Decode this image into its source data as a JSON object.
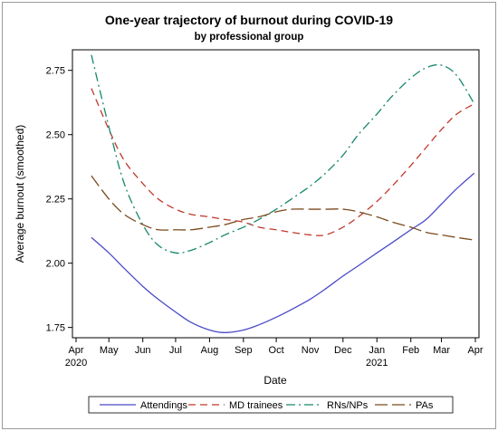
{
  "chart_data": {
    "type": "line",
    "title": "One-year trajectory of burnout during COVID-19",
    "subtitle": "by professional group",
    "xlabel": "Date",
    "ylabel": "Average burnout (smoothed)",
    "x_ticks": [
      {
        "date": "2020-04-01",
        "label": "Apr",
        "label2": "2020"
      },
      {
        "date": "2020-05-01",
        "label": "May",
        "label2": ""
      },
      {
        "date": "2020-06-01",
        "label": "Jun",
        "label2": ""
      },
      {
        "date": "2020-07-01",
        "label": "Jul",
        "label2": ""
      },
      {
        "date": "2020-08-01",
        "label": "Aug",
        "label2": ""
      },
      {
        "date": "2020-09-01",
        "label": "Sep",
        "label2": ""
      },
      {
        "date": "2020-10-01",
        "label": "Oct",
        "label2": ""
      },
      {
        "date": "2020-11-01",
        "label": "Nov",
        "label2": ""
      },
      {
        "date": "2020-12-01",
        "label": "Dec",
        "label2": ""
      },
      {
        "date": "2021-01-01",
        "label": "Jan",
        "label2": "2021"
      },
      {
        "date": "2021-02-01",
        "label": "Feb",
        "label2": ""
      },
      {
        "date": "2021-03-01",
        "label": "Mar",
        "label2": ""
      },
      {
        "date": "2021-04-01",
        "label": "Apr",
        "label2": ""
      }
    ],
    "xlim": [
      "2020-04-01",
      "2021-04-01"
    ],
    "y_ticks": [
      1.75,
      2.0,
      2.25,
      2.5,
      2.75
    ],
    "ylim": [
      1.71,
      2.83
    ],
    "grid": false,
    "legend_position": "bottom",
    "series": [
      {
        "name": "Attendings",
        "color": "#4b4bc8",
        "dash": "solid",
        "points": [
          [
            "2020-04-15",
            2.1
          ],
          [
            "2020-05-01",
            2.04
          ],
          [
            "2020-05-15",
            1.98
          ],
          [
            "2020-06-01",
            1.91
          ],
          [
            "2020-06-15",
            1.86
          ],
          [
            "2020-07-01",
            1.81
          ],
          [
            "2020-07-15",
            1.77
          ],
          [
            "2020-08-01",
            1.74
          ],
          [
            "2020-08-15",
            1.73
          ],
          [
            "2020-09-01",
            1.74
          ],
          [
            "2020-09-15",
            1.76
          ],
          [
            "2020-10-01",
            1.79
          ],
          [
            "2020-10-15",
            1.82
          ],
          [
            "2020-11-01",
            1.86
          ],
          [
            "2020-11-15",
            1.9
          ],
          [
            "2020-12-01",
            1.95
          ],
          [
            "2020-12-15",
            1.99
          ],
          [
            "2021-01-01",
            2.04
          ],
          [
            "2021-01-15",
            2.08
          ],
          [
            "2021-02-01",
            2.13
          ],
          [
            "2021-02-15",
            2.17
          ],
          [
            "2021-03-01",
            2.23
          ],
          [
            "2021-03-15",
            2.29
          ],
          [
            "2021-03-31",
            2.35
          ]
        ]
      },
      {
        "name": "MD trainees",
        "color": "#c0392b",
        "dash": "8,5",
        "points": [
          [
            "2020-04-15",
            2.68
          ],
          [
            "2020-05-01",
            2.52
          ],
          [
            "2020-05-15",
            2.4
          ],
          [
            "2020-06-01",
            2.31
          ],
          [
            "2020-06-15",
            2.25
          ],
          [
            "2020-07-01",
            2.21
          ],
          [
            "2020-07-15",
            2.19
          ],
          [
            "2020-08-01",
            2.18
          ],
          [
            "2020-08-15",
            2.17
          ],
          [
            "2020-09-01",
            2.16
          ],
          [
            "2020-09-15",
            2.14
          ],
          [
            "2020-10-01",
            2.13
          ],
          [
            "2020-10-15",
            2.12
          ],
          [
            "2020-11-01",
            2.11
          ],
          [
            "2020-11-15",
            2.11
          ],
          [
            "2020-12-01",
            2.14
          ],
          [
            "2020-12-15",
            2.18
          ],
          [
            "2021-01-01",
            2.24
          ],
          [
            "2021-01-15",
            2.3
          ],
          [
            "2021-02-01",
            2.38
          ],
          [
            "2021-02-15",
            2.45
          ],
          [
            "2021-03-01",
            2.52
          ],
          [
            "2021-03-15",
            2.58
          ],
          [
            "2021-03-31",
            2.62
          ]
        ]
      },
      {
        "name": "RNs/NPs",
        "color": "#17876e",
        "dash": "10,4,2,4",
        "points": [
          [
            "2020-04-15",
            2.81
          ],
          [
            "2020-05-01",
            2.53
          ],
          [
            "2020-05-15",
            2.31
          ],
          [
            "2020-06-01",
            2.15
          ],
          [
            "2020-06-15",
            2.07
          ],
          [
            "2020-07-01",
            2.04
          ],
          [
            "2020-07-15",
            2.05
          ],
          [
            "2020-08-01",
            2.08
          ],
          [
            "2020-08-15",
            2.11
          ],
          [
            "2020-09-01",
            2.14
          ],
          [
            "2020-09-15",
            2.17
          ],
          [
            "2020-10-01",
            2.21
          ],
          [
            "2020-10-15",
            2.25
          ],
          [
            "2020-11-01",
            2.3
          ],
          [
            "2020-11-15",
            2.35
          ],
          [
            "2020-12-01",
            2.42
          ],
          [
            "2020-12-15",
            2.5
          ],
          [
            "2021-01-01",
            2.58
          ],
          [
            "2021-01-15",
            2.65
          ],
          [
            "2021-02-01",
            2.72
          ],
          [
            "2021-02-15",
            2.76
          ],
          [
            "2021-03-01",
            2.77
          ],
          [
            "2021-03-15",
            2.73
          ],
          [
            "2021-03-31",
            2.62
          ]
        ]
      },
      {
        "name": "PAs",
        "color": "#7a4a1c",
        "dash": "14,5",
        "points": [
          [
            "2020-04-15",
            2.34
          ],
          [
            "2020-05-01",
            2.25
          ],
          [
            "2020-05-15",
            2.19
          ],
          [
            "2020-06-01",
            2.15
          ],
          [
            "2020-06-15",
            2.13
          ],
          [
            "2020-07-01",
            2.13
          ],
          [
            "2020-07-15",
            2.13
          ],
          [
            "2020-08-01",
            2.14
          ],
          [
            "2020-08-15",
            2.15
          ],
          [
            "2020-09-01",
            2.17
          ],
          [
            "2020-09-15",
            2.18
          ],
          [
            "2020-10-01",
            2.2
          ],
          [
            "2020-10-15",
            2.21
          ],
          [
            "2020-11-01",
            2.21
          ],
          [
            "2020-11-15",
            2.21
          ],
          [
            "2020-12-01",
            2.21
          ],
          [
            "2020-12-15",
            2.2
          ],
          [
            "2021-01-01",
            2.18
          ],
          [
            "2021-01-15",
            2.16
          ],
          [
            "2021-02-01",
            2.14
          ],
          [
            "2021-02-15",
            2.12
          ],
          [
            "2021-03-01",
            2.11
          ],
          [
            "2021-03-15",
            2.1
          ],
          [
            "2021-03-31",
            2.09
          ]
        ]
      }
    ]
  }
}
